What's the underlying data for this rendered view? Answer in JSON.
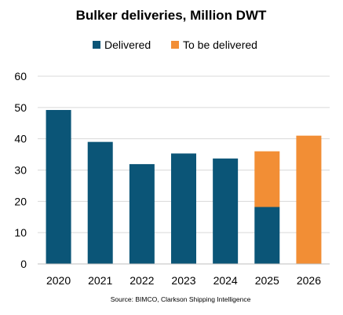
{
  "chart_data": {
    "type": "bar",
    "stacked": true,
    "title": "Bulker deliveries, Million DWT",
    "source": "Source: BIMCO, Clarkson Shipping Intelligence",
    "categories": [
      "2020",
      "2021",
      "2022",
      "2023",
      "2024",
      "2025",
      "2026"
    ],
    "series": [
      {
        "name": "Delivered",
        "color": "#0b5577",
        "values": [
          49.2,
          39.0,
          31.9,
          35.3,
          33.7,
          18.2,
          0
        ]
      },
      {
        "name": "To be delivered",
        "color": "#f28e35",
        "values": [
          0,
          0,
          0,
          0,
          0,
          17.8,
          41.0
        ]
      }
    ],
    "ylim": [
      0,
      60
    ],
    "yticks": [
      "0",
      "10",
      "20",
      "30",
      "40",
      "50",
      "60"
    ],
    "grid": true,
    "legend": "top-center",
    "xlabel": "",
    "ylabel": ""
  }
}
